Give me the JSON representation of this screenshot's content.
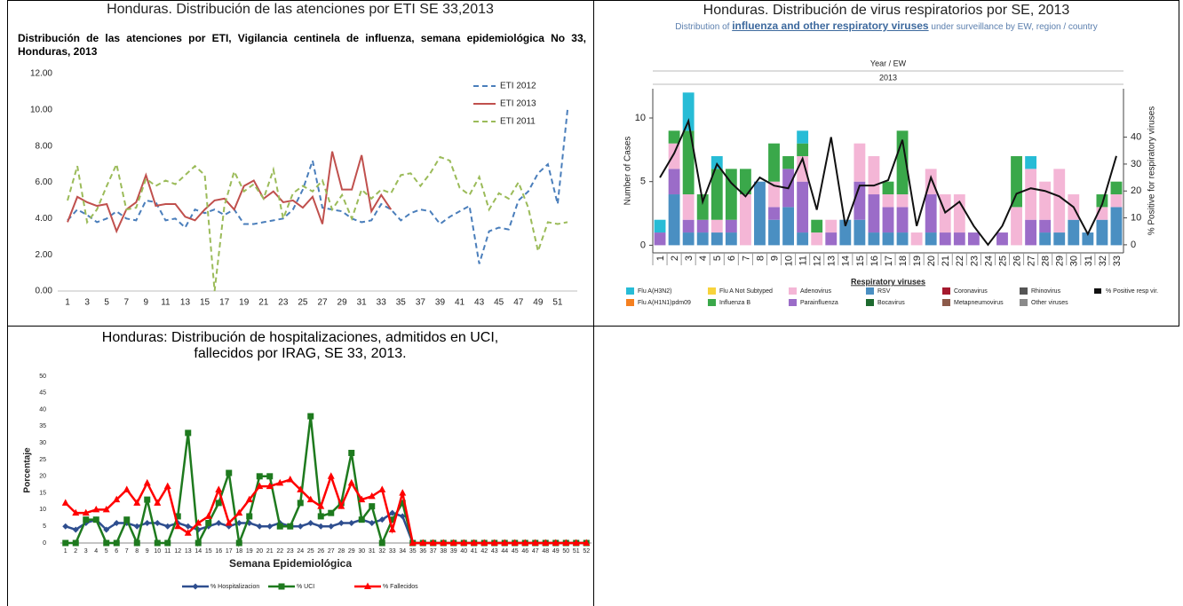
{
  "chart_data": [
    {
      "type": "line",
      "header": "Honduras. Distribución de las atenciones por ETI SE 33,2013",
      "title": "Distribución de las atenciones por ETI, Vigilancia centinela de influenza, semana epidemiológica No 33, Honduras, 2013",
      "x": [
        1,
        2,
        3,
        4,
        5,
        6,
        7,
        8,
        9,
        10,
        11,
        12,
        13,
        14,
        15,
        16,
        17,
        18,
        19,
        20,
        21,
        22,
        23,
        24,
        25,
        26,
        27,
        28,
        29,
        30,
        31,
        32,
        33,
        34,
        35,
        36,
        37,
        38,
        39,
        40,
        41,
        42,
        43,
        44,
        45,
        46,
        47,
        48,
        49,
        50,
        51,
        52
      ],
      "xlim": [
        0,
        53
      ],
      "xticks": [
        1,
        3,
        5,
        7,
        9,
        11,
        13,
        15,
        17,
        19,
        21,
        23,
        25,
        27,
        29,
        31,
        33,
        35,
        37,
        39,
        41,
        43,
        45,
        47,
        49,
        51
      ],
      "ylim": [
        0,
        12
      ],
      "yticks": [
        {
          "value": 0,
          "label": "0.00"
        },
        {
          "value": 2,
          "label": "2.00"
        },
        {
          "value": 4,
          "label": "4.00"
        },
        {
          "value": 6,
          "label": "6.00"
        },
        {
          "value": 8,
          "label": "8.00"
        },
        {
          "value": 10,
          "label": "10.00"
        },
        {
          "value": 12,
          "label": "12.00"
        }
      ],
      "legend": "upper right",
      "series": [
        {
          "name": "ETI 2012",
          "color": "#4a7ebb",
          "style": "dashed",
          "values": [
            3.9,
            4.5,
            4.2,
            3.8,
            4.0,
            4.4,
            4.0,
            3.9,
            5.0,
            4.9,
            3.9,
            4.0,
            3.5,
            4.5,
            4.3,
            4.5,
            4.2,
            4.5,
            3.7,
            3.7,
            3.8,
            3.9,
            4.0,
            4.5,
            5.6,
            7.2,
            4.6,
            4.5,
            4.4,
            4.0,
            3.8,
            3.9,
            4.8,
            4.5,
            3.9,
            4.3,
            4.5,
            4.4,
            3.7,
            4.1,
            4.4,
            4.7,
            1.5,
            3.3,
            3.5,
            3.4,
            5.0,
            5.5,
            6.5,
            7.0,
            4.8,
            10.0
          ]
        },
        {
          "name": "ETI 2013",
          "color": "#c0504d",
          "style": "solid",
          "values": [
            3.8,
            5.2,
            4.9,
            4.7,
            4.8,
            3.3,
            4.5,
            4.9,
            6.4,
            4.7,
            4.8,
            4.8,
            4.1,
            3.9,
            4.5,
            5.0,
            5.1,
            4.5,
            5.8,
            6.1,
            5.1,
            5.5,
            4.9,
            5.0,
            4.6,
            5.2,
            3.7,
            7.7,
            5.6,
            5.6,
            7.5,
            4.4,
            5.3,
            4.5,
            null,
            null,
            null,
            null,
            null,
            null,
            null,
            null,
            null,
            null,
            null,
            null,
            null,
            null,
            null,
            null,
            null,
            null
          ]
        },
        {
          "name": "ETI 2011",
          "color": "#9bbb59",
          "style": "dashed",
          "values": [
            5.0,
            6.9,
            3.8,
            4.5,
            5.8,
            7.0,
            4.5,
            4.6,
            6.2,
            5.8,
            6.1,
            5.9,
            6.4,
            6.9,
            6.4,
            0.0,
            4.7,
            6.6,
            5.5,
            5.9,
            5.1,
            6.7,
            4.0,
            5.4,
            5.8,
            5.5,
            6.1,
            4.5,
            5.3,
            4.0,
            5.6,
            5.1,
            5.6,
            5.4,
            6.4,
            6.5,
            5.8,
            6.5,
            7.4,
            7.2,
            5.7,
            5.3,
            6.3,
            4.5,
            5.4,
            5.1,
            6.0,
            4.6,
            2.2,
            3.8,
            3.7,
            3.8
          ]
        }
      ]
    },
    {
      "type": "bar",
      "header": "Honduras. Distribución de virus respiratorios por SE, 2013",
      "subtitle": [
        "Distribution of ",
        "influenza and other respiratory viruses",
        " under surveillance by EW, region / country"
      ],
      "axis_header": "Year / EW",
      "group_label": "2013",
      "ylabel": "Number of Cases",
      "y2label": "% Positive for respiratory viruses",
      "legend_title": "Respiratory viruses",
      "stacked": true,
      "categories": [
        "1",
        "2",
        "3",
        "4",
        "5",
        "6",
        "7",
        "8",
        "9",
        "10",
        "11",
        "12",
        "13",
        "14",
        "15",
        "16",
        "17",
        "18",
        "19",
        "20",
        "21",
        "22",
        "23",
        "24",
        "25",
        "26",
        "27",
        "28",
        "29",
        "30",
        "31",
        "32",
        "33"
      ],
      "ylim": [
        -0.6,
        12.3
      ],
      "yticks": [
        0,
        5,
        10
      ],
      "y2lim": [
        -3,
        58
      ],
      "y2ticks": [
        0,
        10,
        20,
        30,
        40
      ],
      "series": [
        {
          "name": "RSV",
          "color": "#4a8fc2",
          "values": [
            0,
            4,
            1,
            1,
            1,
            1,
            0,
            5,
            2,
            3,
            1,
            0,
            0,
            2,
            2,
            1,
            1,
            1,
            0,
            1,
            0,
            0,
            0,
            0,
            0,
            0,
            0,
            1,
            1,
            2,
            1,
            2,
            3
          ]
        },
        {
          "name": "Parainfluenza",
          "color": "#9b6cc8",
          "values": [
            1,
            2,
            1,
            1,
            0,
            1,
            0,
            0,
            1,
            3,
            4,
            0,
            1,
            0,
            3,
            3,
            2,
            2,
            0,
            3,
            1,
            1,
            1,
            0,
            1,
            0,
            2,
            1,
            0,
            0,
            0,
            0,
            0
          ]
        },
        {
          "name": "Adenovirus",
          "color": "#f4b6d6",
          "values": [
            0,
            2,
            2,
            0,
            1,
            0,
            4,
            0,
            2,
            0,
            2,
            1,
            1,
            0,
            3,
            3,
            1,
            1,
            1,
            2,
            3,
            3,
            0,
            0,
            0,
            3,
            4,
            3,
            5,
            2,
            0,
            1,
            1
          ]
        },
        {
          "name": "Influenza B",
          "color": "#3aa84a",
          "values": [
            0,
            1,
            5,
            2,
            4,
            4,
            2,
            0,
            3,
            1,
            1,
            1,
            0,
            0,
            0,
            0,
            1,
            5,
            0,
            0,
            0,
            0,
            0,
            0,
            0,
            4,
            0,
            0,
            0,
            0,
            0,
            1,
            1
          ]
        },
        {
          "name": "Flu A(H3N2)",
          "color": "#27bcd6",
          "values": [
            1,
            0,
            3,
            0,
            1,
            0,
            0,
            0,
            0,
            0,
            1,
            0,
            0,
            0,
            0,
            0,
            0,
            0,
            0,
            0,
            0,
            0,
            0,
            0,
            0,
            0,
            1,
            0,
            0,
            0,
            0,
            0,
            0
          ]
        },
        {
          "name": "Flu A(H1N1)pdm09",
          "color": "#f58020",
          "values": [
            0,
            0,
            0,
            0,
            0,
            0,
            0,
            0,
            0,
            0,
            0,
            0,
            0,
            0,
            0,
            0,
            0,
            0,
            0,
            0,
            0,
            0,
            0,
            0,
            0,
            0,
            0,
            0,
            0,
            0,
            0,
            0,
            0
          ]
        },
        {
          "name": "Flu A Not Subtyped",
          "color": "#f7d33c",
          "values": [
            0,
            0,
            0,
            0,
            0,
            0,
            0,
            0,
            0,
            0,
            0,
            0,
            0,
            0,
            0,
            0,
            0,
            0,
            0,
            0,
            0,
            0,
            0,
            0,
            0,
            0,
            0,
            0,
            0,
            0,
            0,
            0,
            0
          ]
        },
        {
          "name": "Bocavirus",
          "color": "#1d6a2f",
          "values": [
            0,
            0,
            0,
            0,
            0,
            0,
            0,
            0,
            0,
            0,
            0,
            0,
            0,
            0,
            0,
            0,
            0,
            0,
            0,
            0,
            0,
            0,
            0,
            0,
            0,
            0,
            0,
            0,
            0,
            0,
            0,
            0,
            0
          ]
        },
        {
          "name": "Coronavirus",
          "color": "#a5192e",
          "values": [
            0,
            0,
            0,
            0,
            0,
            0,
            0,
            0,
            0,
            0,
            0,
            0,
            0,
            0,
            0,
            0,
            0,
            0,
            0,
            0,
            0,
            0,
            0,
            0,
            0,
            0,
            0,
            0,
            0,
            0,
            0,
            0,
            0
          ]
        },
        {
          "name": "Metapneumovirus",
          "color": "#8c5a4a",
          "values": [
            0,
            0,
            0,
            0,
            0,
            0,
            0,
            0,
            0,
            0,
            0,
            0,
            0,
            0,
            0,
            0,
            0,
            0,
            0,
            0,
            0,
            0,
            0,
            0,
            0,
            0,
            0,
            0,
            0,
            0,
            0,
            0,
            0
          ]
        },
        {
          "name": "Rhinovirus",
          "color": "#555555",
          "values": [
            0,
            0,
            0,
            0,
            0,
            0,
            0,
            0,
            0,
            0,
            0,
            0,
            0,
            0,
            0,
            0,
            0,
            0,
            0,
            0,
            0,
            0,
            0,
            0,
            0,
            0,
            0,
            0,
            0,
            0,
            0,
            0,
            0
          ]
        },
        {
          "name": "Other viruses",
          "color": "#8a8a8a",
          "values": [
            0,
            0,
            0,
            0,
            0,
            0,
            0,
            0,
            0,
            0,
            0,
            0,
            0,
            0,
            0,
            0,
            0,
            0,
            0,
            0,
            0,
            0,
            0,
            0,
            0,
            0,
            0,
            0,
            0,
            0,
            0,
            0,
            0
          ]
        },
        {
          "name": "% Positive resp vir.",
          "color": "#111111",
          "type": "line",
          "axis": "y2",
          "values": [
            25,
            34,
            46,
            16,
            30,
            23,
            18,
            25,
            22,
            21,
            32,
            13,
            40,
            7,
            22,
            22,
            24,
            39,
            7,
            25,
            12,
            16,
            7,
            0,
            7,
            19,
            21,
            20,
            18,
            14,
            4,
            15,
            33
          ]
        }
      ]
    },
    {
      "type": "line",
      "header": "Honduras: Distribución de hospitalizaciones, admitidos en UCI, fallecidos por IRAG, SE 33, 2013.",
      "xlabel": "Semana Epidemiológica",
      "ylabel": "Porcentaje",
      "legend": "bottom",
      "categories": [
        "1",
        "2",
        "3",
        "4",
        "5",
        "6",
        "7",
        "8",
        "9",
        "10",
        "11",
        "12",
        "13",
        "14",
        "15",
        "16",
        "17",
        "18",
        "19",
        "20",
        "21",
        "22",
        "23",
        "24",
        "25",
        "26",
        "27",
        "28",
        "29",
        "30",
        "31",
        "32",
        "33",
        "34",
        "35",
        "36",
        "37",
        "38",
        "39",
        "40",
        "41",
        "42",
        "43",
        "44",
        "45",
        "46",
        "47",
        "48",
        "49",
        "50",
        "51",
        "52"
      ],
      "ylim": [
        0,
        50
      ],
      "yticks": [
        0,
        5,
        10,
        15,
        20,
        25,
        30,
        35,
        40,
        45,
        50
      ],
      "series": [
        {
          "name": "% Hospitalizacion",
          "color": "#2e4e8f",
          "marker": "diamond",
          "values": [
            5,
            4,
            6,
            7,
            4,
            6,
            6,
            5,
            6,
            6,
            5,
            6,
            5,
            4,
            5,
            6,
            5,
            6,
            6,
            5,
            5,
            6,
            5,
            5,
            6,
            5,
            5,
            6,
            6,
            7,
            6,
            7,
            9,
            8,
            0,
            0,
            0,
            0,
            0,
            0,
            0,
            0,
            0,
            0,
            0,
            0,
            0,
            0,
            0,
            0,
            0,
            0
          ]
        },
        {
          "name": "% UCI",
          "color": "#1e7a1e",
          "marker": "square",
          "values": [
            0,
            0,
            7,
            7,
            0,
            0,
            7,
            0,
            13,
            0,
            0,
            8,
            33,
            0,
            6,
            12,
            21,
            0,
            8,
            20,
            20,
            5,
            5,
            12,
            38,
            8,
            9,
            12,
            27,
            7,
            11,
            0,
            7,
            12,
            0,
            0,
            0,
            0,
            0,
            0,
            0,
            0,
            0,
            0,
            0,
            0,
            0,
            0,
            0,
            0,
            0,
            0
          ]
        },
        {
          "name": "% Fallecidos",
          "color": "#ff0000",
          "marker": "triangle",
          "values": [
            12,
            9,
            9,
            10,
            10,
            13,
            16,
            12,
            18,
            12,
            17,
            5,
            3,
            6,
            8,
            16,
            6,
            9,
            13,
            17,
            17,
            18,
            19,
            16,
            13,
            11,
            20,
            11,
            18,
            13,
            14,
            16,
            4,
            15,
            0,
            0,
            0,
            0,
            0,
            0,
            0,
            0,
            0,
            0,
            0,
            0,
            0,
            0,
            0,
            0,
            0,
            0
          ]
        }
      ]
    }
  ]
}
